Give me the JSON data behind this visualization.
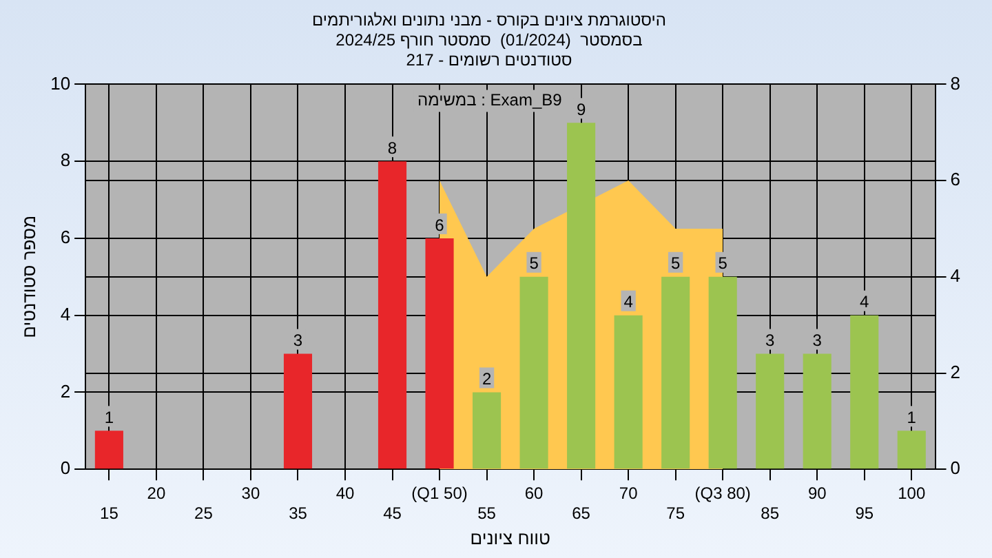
{
  "chart_data": {
    "type": "bar",
    "title": [
      "היסטוגרמת ציונים בקורס - מבני נתונים ואלגוריתמים",
      "בסמסטר  (01/2024)  סמסטר חורף 2024/25",
      "סטודנטים רשומים - 217"
    ],
    "xlabel": "טווח ציונים",
    "ylabel": "מספר סטודנטים",
    "annotations": [
      "במשימה : Exam_B9"
    ],
    "categories": [
      "15",
      "20",
      "25",
      "30",
      "35",
      "40",
      "45",
      "(Q1 50)",
      "55",
      "60",
      "65",
      "70",
      "75",
      "(Q3 80)",
      "85",
      "90",
      "95",
      "100"
    ],
    "series": [
      {
        "type": "area",
        "axis": "y2",
        "color": "#ffc850",
        "values": [
          null,
          null,
          null,
          null,
          null,
          null,
          null,
          6,
          4,
          5,
          null,
          6,
          5,
          5,
          null,
          null,
          null,
          null
        ]
      },
      {
        "colors": [
          "#e8262a",
          "#e8262a",
          "#e8262a",
          "#e8262a",
          "#e8262a",
          "#e8262a",
          "#e8262a",
          "#e8262a",
          "#9cc450",
          "#9cc450",
          "#9cc450",
          "#9cc450",
          "#9cc450",
          "#9cc450",
          "#9cc450",
          "#9cc450",
          "#9cc450",
          "#9cc450"
        ],
        "values": [
          1,
          0,
          0,
          0,
          3,
          0,
          8,
          6,
          2,
          5,
          9,
          4,
          5,
          5,
          3,
          3,
          4,
          1
        ],
        "value_labels": [
          "1",
          null,
          null,
          null,
          "3",
          null,
          "8",
          "6",
          "2",
          "5",
          "9",
          "4",
          "5",
          "5",
          "3",
          "3",
          "4",
          "1"
        ]
      }
    ],
    "ylim": [
      0,
      10
    ],
    "yticks": [
      0,
      2,
      4,
      6,
      8,
      10
    ],
    "y2lim": [
      0,
      8
    ],
    "y2ticks": [
      0,
      2,
      4,
      6,
      8
    ],
    "grid": true,
    "legend": false
  }
}
